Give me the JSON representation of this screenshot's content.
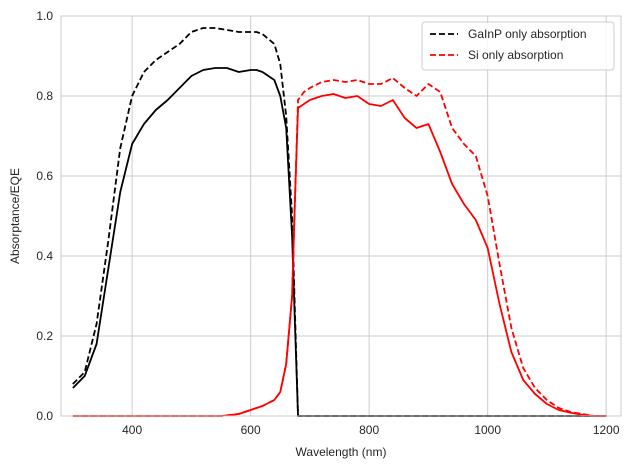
{
  "chart_data": {
    "type": "line",
    "xlabel": "Wavelength (nm)",
    "ylabel": "Absorptance/EQE",
    "xlim": [
      280,
      1225
    ],
    "ylim": [
      0.0,
      1.0
    ],
    "xticks": [
      400,
      600,
      800,
      1000,
      1200
    ],
    "yticks": [
      0.0,
      0.2,
      0.4,
      0.6,
      0.8,
      1.0
    ],
    "xtick_labels": [
      "400",
      "600",
      "800",
      "1000",
      "1200"
    ],
    "ytick_labels": [
      "0.0",
      "0.2",
      "0.4",
      "0.6",
      "0.8",
      "1.0"
    ],
    "grid": true,
    "legend_position": "top-right",
    "series": [
      {
        "name": "GaInP only absorption",
        "color": "#000000",
        "style": "dashed",
        "in_legend": true,
        "x": [
          300,
          320,
          340,
          360,
          380,
          400,
          420,
          440,
          460,
          480,
          500,
          520,
          540,
          560,
          580,
          600,
          610,
          620,
          640,
          650,
          660,
          670,
          675,
          680,
          690,
          700,
          800,
          900,
          1000,
          1100,
          1200
        ],
        "y": [
          0.08,
          0.11,
          0.23,
          0.44,
          0.67,
          0.8,
          0.86,
          0.89,
          0.91,
          0.93,
          0.96,
          0.97,
          0.97,
          0.965,
          0.96,
          0.96,
          0.96,
          0.955,
          0.93,
          0.88,
          0.75,
          0.5,
          0.25,
          0.0,
          0.0,
          0.0,
          0.0,
          0.0,
          0.0,
          0.0,
          0.0
        ]
      },
      {
        "name": "Si only absorption",
        "color": "#ff0000",
        "style": "dashed",
        "in_legend": true,
        "x": [
          300,
          550,
          580,
          600,
          620,
          640,
          650,
          660,
          670,
          675,
          680,
          690,
          700,
          720,
          740,
          760,
          780,
          800,
          820,
          840,
          860,
          880,
          900,
          920,
          940,
          960,
          980,
          1000,
          1020,
          1040,
          1060,
          1080,
          1100,
          1120,
          1140,
          1160,
          1180,
          1200
        ],
        "y": [
          0.0,
          0.0,
          0.005,
          0.015,
          0.025,
          0.04,
          0.06,
          0.13,
          0.3,
          0.55,
          0.79,
          0.81,
          0.82,
          0.835,
          0.84,
          0.835,
          0.84,
          0.83,
          0.83,
          0.845,
          0.82,
          0.8,
          0.83,
          0.81,
          0.72,
          0.68,
          0.65,
          0.55,
          0.38,
          0.22,
          0.12,
          0.07,
          0.04,
          0.02,
          0.01,
          0.005,
          0.0,
          0.0
        ]
      },
      {
        "name": "",
        "color": "#000000",
        "style": "solid",
        "in_legend": false,
        "x": [
          300,
          320,
          340,
          360,
          380,
          400,
          420,
          440,
          460,
          480,
          500,
          520,
          540,
          560,
          580,
          600,
          610,
          620,
          640,
          650,
          660,
          670,
          675,
          680,
          690,
          700,
          800,
          900,
          1000,
          1100,
          1200
        ],
        "y": [
          0.07,
          0.1,
          0.18,
          0.37,
          0.56,
          0.68,
          0.73,
          0.765,
          0.79,
          0.82,
          0.85,
          0.865,
          0.87,
          0.87,
          0.86,
          0.865,
          0.865,
          0.86,
          0.84,
          0.8,
          0.72,
          0.45,
          0.22,
          0.0,
          0.0,
          0.0,
          0.0,
          0.0,
          0.0,
          0.0,
          0.0
        ]
      },
      {
        "name": "",
        "color": "#ff0000",
        "style": "solid",
        "in_legend": false,
        "x": [
          300,
          550,
          580,
          600,
          620,
          640,
          650,
          660,
          670,
          675,
          680,
          690,
          700,
          720,
          740,
          760,
          780,
          800,
          820,
          840,
          860,
          880,
          900,
          920,
          940,
          960,
          980,
          1000,
          1020,
          1040,
          1060,
          1080,
          1100,
          1120,
          1140,
          1160,
          1180,
          1200
        ],
        "y": [
          0.0,
          0.0,
          0.005,
          0.015,
          0.025,
          0.04,
          0.06,
          0.13,
          0.3,
          0.55,
          0.77,
          0.78,
          0.79,
          0.8,
          0.805,
          0.795,
          0.8,
          0.78,
          0.775,
          0.79,
          0.745,
          0.72,
          0.73,
          0.66,
          0.58,
          0.53,
          0.49,
          0.42,
          0.28,
          0.16,
          0.09,
          0.055,
          0.03,
          0.015,
          0.008,
          0.003,
          0.0,
          0.0
        ]
      }
    ]
  }
}
